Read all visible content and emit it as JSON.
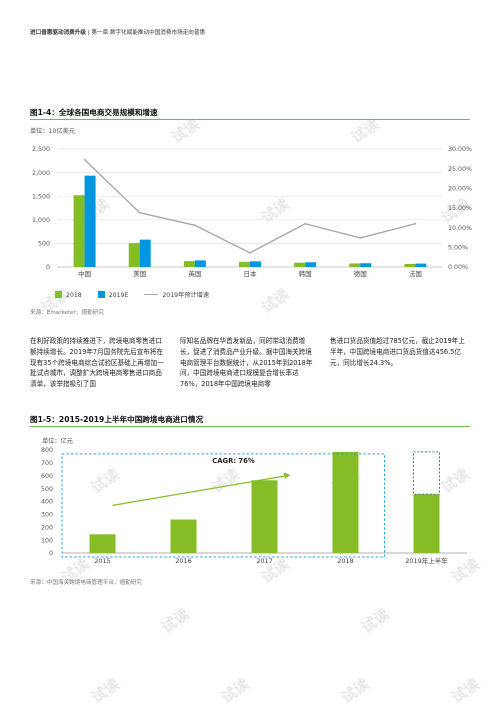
{
  "header": {
    "bold": "进口普惠驱动消费升级",
    "rest": "| 第一章 数字化赋能推动中国消费市场走向普惠"
  },
  "fig1": {
    "title": "图1-4：全球各国电商交易规模和增速",
    "unit": "单位：10亿美元",
    "source": "来源：Emarketer，德勤研究",
    "legend": [
      "2018",
      "2019E",
      "2019年预计增速"
    ]
  },
  "fig2": {
    "title": "图1-5：2015-2019上半年中国跨境电商进口情况",
    "unit": "单位：亿元",
    "cagr": "CAGR: 76%",
    "source": "来源：中国海关跨境电商管理平台，德勤研究"
  },
  "body": {
    "col1": "在利好政策的持续推进下，跨境电商零售进口额持续增长。2019年7月国务院先后宣布将在现有35个跨境电商综合试验区基础上再增加一批试点城市，调整扩大跨境电商零售进口商品清单，该举措吸引了国",
    "col2": "际知名品牌在华首发新品，同时带动消费增长，促进了消费品产业升级。据中国海关跨境电商管理平台数据统计，从2015年到2018年间，中国跨境电商进口规模复合增长率达76%，2018年中国跨境电商零",
    "col3": "售进口货品货值超过785亿元，截止2019年上半年，中国跨境电商进口货品货值达456.5亿元，同比增长24.3%。"
  },
  "watermark": "试读",
  "colors": {
    "green": "#86bc25",
    "blue": "#0097e0",
    "gray_line": "#a8a8a8",
    "dashed_blue": "#27a9e1",
    "dashed_green": "#2e8b57"
  },
  "chart_data": [
    {
      "type": "bar",
      "title": "图1-4：全球各国电商交易规模和增速",
      "ylabel": "单位：10亿美元",
      "categories": [
        "中国",
        "美国",
        "英国",
        "日本",
        "韩国",
        "德国",
        "法国"
      ],
      "series": [
        {
          "name": "2018",
          "type": "bar",
          "axis": "left",
          "values": [
            1520,
            505,
            125,
            110,
            90,
            75,
            65
          ]
        },
        {
          "name": "2019E",
          "type": "bar",
          "axis": "left",
          "values": [
            1935,
            580,
            140,
            120,
            100,
            80,
            72
          ]
        },
        {
          "name": "2019年预计增速",
          "type": "line",
          "axis": "right",
          "values": [
            27.3,
            13.8,
            10.6,
            3.6,
            11.0,
            7.4,
            11.0
          ]
        }
      ],
      "ylim": [
        0,
        2500
      ],
      "yticks": [
        "0",
        "500",
        "1,000",
        "1,500",
        "2,000",
        "2,500"
      ],
      "y2lim": [
        0,
        30
      ],
      "y2ticks": [
        "0.00%",
        "5.00%",
        "10.00%",
        "15.00%",
        "20.00%",
        "25.00%",
        "30.00%"
      ],
      "grid": true,
      "legend": "bottom"
    },
    {
      "type": "bar",
      "title": "图1-5：2015-2019上半年中国跨境电商进口情况",
      "ylabel": "单位：亿元",
      "categories": [
        "2015",
        "2016",
        "2017",
        "2018",
        "2019年上半年"
      ],
      "values": [
        145,
        260,
        565,
        785,
        456.5
      ],
      "ylim": [
        0,
        800
      ],
      "yticks": [
        "0",
        "100",
        "200",
        "300",
        "400",
        "500",
        "600",
        "700",
        "800"
      ],
      "annotations": [
        "CAGR: 76%"
      ],
      "grid": false
    }
  ]
}
